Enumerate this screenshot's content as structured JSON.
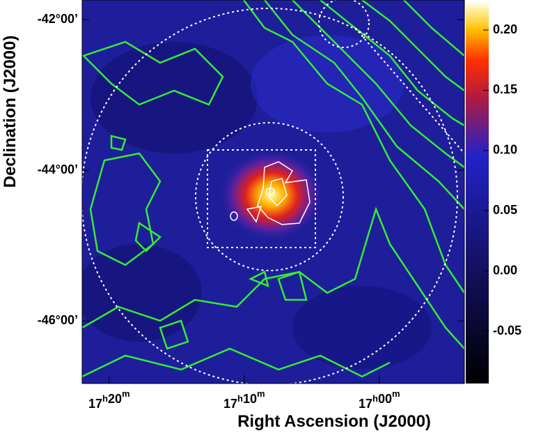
{
  "chart_data": {
    "type": "heatmap",
    "x_label": "Right Ascension (J2000)",
    "y_label": "Declination (J2000)",
    "xlim": [
      1042.0,
      1013.7
    ],
    "xticks": [
      {
        "value": 1040,
        "label": "17h20m"
      },
      {
        "value": 1030,
        "label": "17h10m"
      },
      {
        "value": 1020,
        "label": "17h00m"
      }
    ],
    "ylim": [
      -46.83,
      -41.74
    ],
    "yticks": [
      {
        "value": -42,
        "label": "-42°00’"
      },
      {
        "value": -44,
        "label": "-44°00’"
      },
      {
        "value": -46,
        "label": "-46°00’"
      }
    ],
    "colorbar": {
      "lim": [
        -0.0934,
        0.2226
      ],
      "ticks": [
        -0.05,
        {
          "value": 0.0,
          "label": "0.00"
        },
        {
          "value": 0.05,
          "label": "0.05"
        },
        {
          "value": 0.1,
          "label": "0.10"
        },
        {
          "value": 0.15,
          "label": "0.15"
        },
        {
          "value": 0.2,
          "label": "0.20"
        }
      ]
    }
  }
}
